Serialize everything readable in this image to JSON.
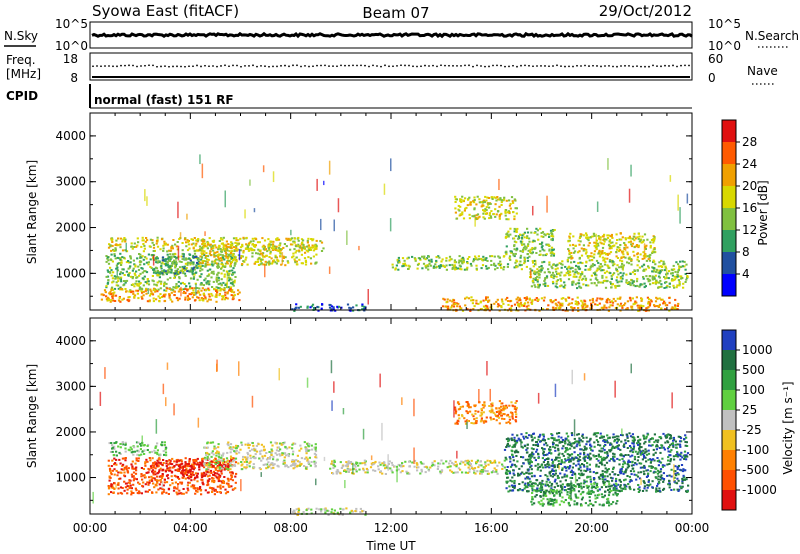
{
  "header": {
    "station": "Syowa East (fitACF)",
    "beam": "Beam 07",
    "date": "29/Oct/2012"
  },
  "strips": {
    "nsky_label": "N.Sky",
    "nsearch_label": "N.Search",
    "noise_ticks_left": [
      "10^5",
      "10^0"
    ],
    "noise_ticks_right": [
      "10^5",
      "10^0"
    ],
    "freq_label_top": "Freq.",
    "freq_label_bottom": "[MHz]",
    "freq_ticks": [
      "18",
      "8"
    ],
    "nave_label": "Nave",
    "nave_ticks": [
      "60",
      "0"
    ],
    "cpid_label": "CPID",
    "cpid_text": "normal (fast) 151 RF"
  },
  "chart_data": [
    {
      "type": "heatmap",
      "panel": "power",
      "ylabel": "Slant Range [km]",
      "yticks": [
        "1000",
        "2000",
        "3000",
        "4000"
      ],
      "ylim": [
        200,
        4500
      ],
      "xlim_hours": [
        0,
        24
      ],
      "colorbar_label": "Power [dB]",
      "colorbar_ticks": [
        "28",
        "24",
        "20",
        "16",
        "12",
        "8",
        "4"
      ],
      "colorbar_colors": [
        "#e01010",
        "#ff5a00",
        "#f0a000",
        "#d8d800",
        "#80c040",
        "#30a060",
        "#2050a0",
        "#0000ff"
      ],
      "regions": [
        {
          "t0": 0.7,
          "t1": 9.3,
          "r0": 1500,
          "r1": 1800,
          "level": 3
        },
        {
          "t0": 0.6,
          "t1": 5.8,
          "r0": 650,
          "r1": 1450,
          "level": 4
        },
        {
          "t0": 2.5,
          "t1": 4.3,
          "r0": 1000,
          "r1": 1400,
          "level": 5
        },
        {
          "t0": 4.3,
          "t1": 9.0,
          "r0": 1200,
          "r1": 1650,
          "level": 3
        },
        {
          "t0": 0.4,
          "t1": 6.0,
          "r0": 400,
          "r1": 700,
          "level": 2
        },
        {
          "t0": 8.0,
          "t1": 11.0,
          "r0": 200,
          "r1": 350,
          "level": 6
        },
        {
          "t0": 12.0,
          "t1": 17.5,
          "r0": 1100,
          "r1": 1400,
          "level": 4
        },
        {
          "t0": 16.5,
          "t1": 18.5,
          "r0": 1400,
          "r1": 2000,
          "level": 4
        },
        {
          "t0": 14.5,
          "t1": 17.0,
          "r0": 2200,
          "r1": 2700,
          "level": 3
        },
        {
          "t0": 17.5,
          "t1": 23.8,
          "r0": 700,
          "r1": 1300,
          "level": 4
        },
        {
          "t0": 19.0,
          "t1": 22.5,
          "r0": 1300,
          "r1": 1900,
          "level": 3
        },
        {
          "t0": 14.0,
          "t1": 23.5,
          "r0": 200,
          "r1": 500,
          "level": 2
        }
      ]
    },
    {
      "type": "heatmap",
      "panel": "velocity",
      "ylabel": "Slant Range [km]",
      "yticks": [
        "1000",
        "2000",
        "3000",
        "4000"
      ],
      "ylim": [
        200,
        4500
      ],
      "xlabel": "Time UT",
      "xticks": [
        "00:00",
        "04:00",
        "08:00",
        "12:00",
        "16:00",
        "20:00",
        "00:00"
      ],
      "xlim_hours": [
        0,
        24
      ],
      "colorbar_label": "Velocity [m s⁻¹]",
      "colorbar_ticks": [
        "1000",
        "500",
        "100",
        "25",
        "-25",
        "-100",
        "-500",
        "-1000"
      ],
      "colorbar_colors": [
        "#2040c0",
        "#207040",
        "#30a040",
        "#60d040",
        "#c0c0c0",
        "#f0c020",
        "#ff8000",
        "#ff5000",
        "#e01010"
      ],
      "regions": [
        {
          "t0": 0.7,
          "t1": 5.8,
          "r0": 650,
          "r1": 1450,
          "level": 7
        },
        {
          "t0": 2.5,
          "t1": 5.5,
          "r0": 1000,
          "r1": 1400,
          "level": 8
        },
        {
          "t0": 0.7,
          "t1": 3.0,
          "r0": 1500,
          "r1": 1800,
          "level": 3
        },
        {
          "t0": 4.5,
          "t1": 9.0,
          "r0": 1200,
          "r1": 1800,
          "level": 4
        },
        {
          "t0": 9.5,
          "t1": 16.5,
          "r0": 1100,
          "r1": 1400,
          "level": 4
        },
        {
          "t0": 8.0,
          "t1": 11.0,
          "r0": 200,
          "r1": 350,
          "level": 4
        },
        {
          "t0": 16.5,
          "t1": 23.8,
          "r0": 700,
          "r1": 2000,
          "level": 1
        },
        {
          "t0": 14.5,
          "t1": 17.0,
          "r0": 2200,
          "r1": 2700,
          "level": 6
        },
        {
          "t0": 17.5,
          "t1": 21.0,
          "r0": 400,
          "r1": 900,
          "level": 2
        }
      ]
    }
  ]
}
